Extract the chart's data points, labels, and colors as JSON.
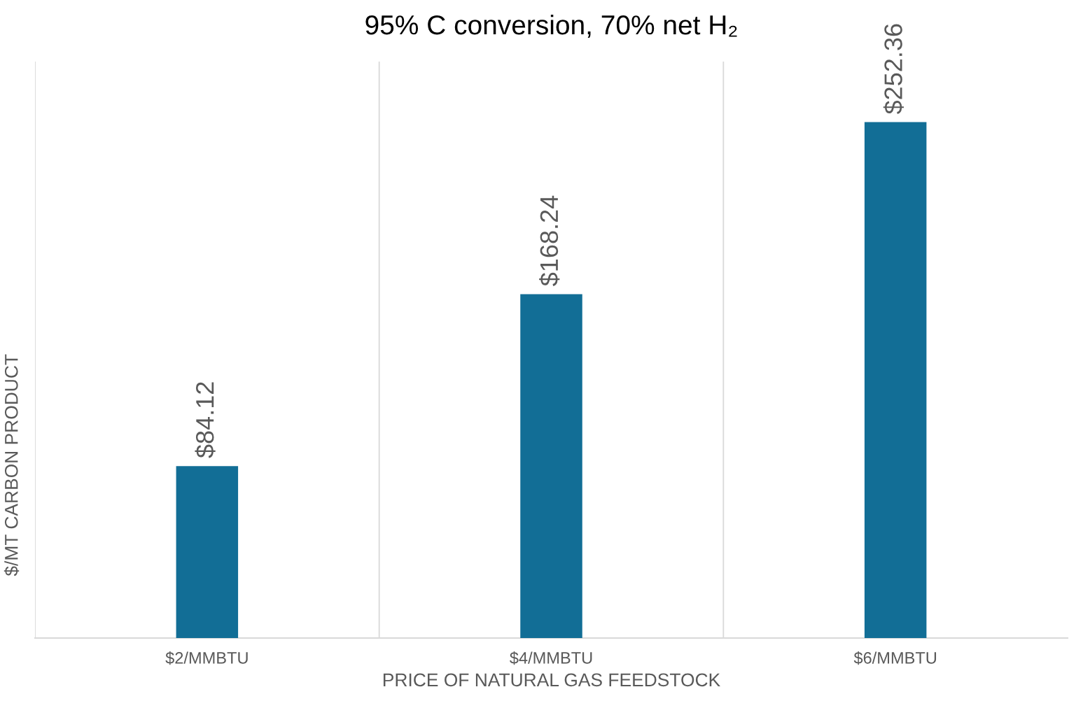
{
  "chart_data": {
    "type": "bar",
    "title": "95% C conversion, 70% net H₂",
    "xlabel": "PRICE OF NATURAL GAS FEEDSTOCK",
    "ylabel": "$/MT CARBON PRODUCT",
    "categories": [
      "$2/MMBTU",
      "$4/MMBTU",
      "$6/MMBTU"
    ],
    "values": [
      84.12,
      168.24,
      252.36
    ],
    "color": "#126e96",
    "value_labels": [
      "$84.12",
      "$168.24",
      "$252.36"
    ],
    "ylim": [
      0,
      282
    ],
    "tick_labels": "x",
    "grid": "x",
    "legend": false
  }
}
